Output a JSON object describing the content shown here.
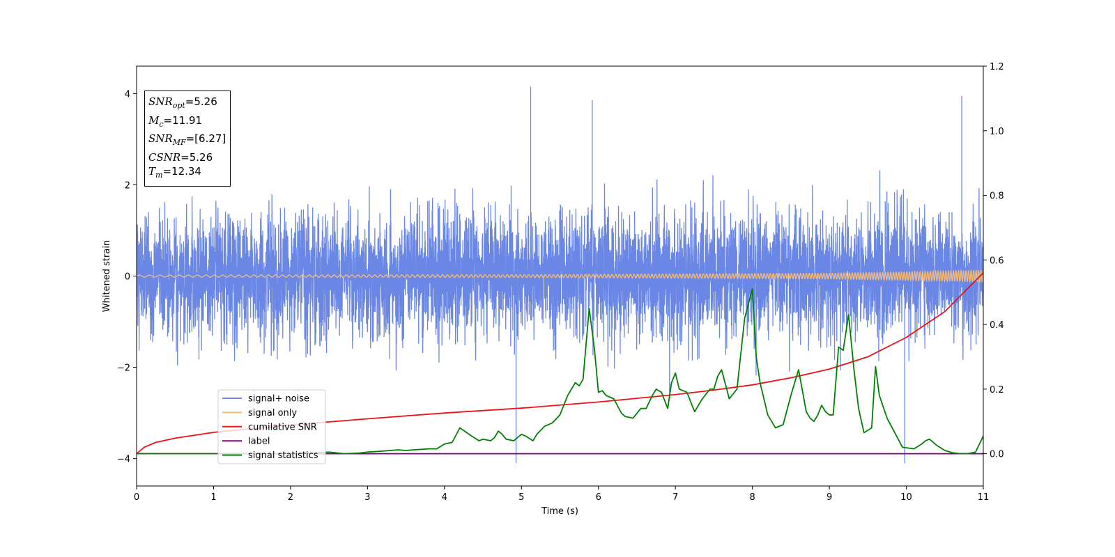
{
  "chart_data": {
    "type": "line",
    "xlabel": "Time (s)",
    "ylabel": "Whitened strain",
    "xlim": [
      0,
      11
    ],
    "ylim": [
      -4.6,
      4.6
    ],
    "y2lim": [
      -0.1,
      1.2
    ],
    "x_ticks": [
      "0",
      "1",
      "2",
      "3",
      "4",
      "5",
      "6",
      "7",
      "8",
      "9",
      "10",
      "11"
    ],
    "y_ticks": [
      "−4",
      "−2",
      "0",
      "2",
      "4"
    ],
    "y2_ticks": [
      "0.0",
      "0.2",
      "0.4",
      "0.6",
      "0.8",
      "1.0",
      "1.2"
    ],
    "legend_position": "lower-left",
    "series": [
      {
        "name": "signal+ noise",
        "axis": "left",
        "color": "#6b87e6",
        "description_values": "dense gaussian-like noise, amplitude mostly within ±2.6, peaks near ±4.2",
        "noise_std": 1.0,
        "peaks": [
          {
            "x": 5.12,
            "y": 4.15
          },
          {
            "x": 10.72,
            "y": 3.95
          },
          {
            "x": 5.92,
            "y": 3.85
          },
          {
            "x": 4.93,
            "y": -4.1
          },
          {
            "x": 9.98,
            "y": -4.1
          }
        ]
      },
      {
        "name": "signal only",
        "axis": "left",
        "color": "#f5b971",
        "envelope": [
          {
            "x": 0,
            "a": 0.02
          },
          {
            "x": 5,
            "a": 0.03
          },
          {
            "x": 9,
            "a": 0.06
          },
          {
            "x": 10,
            "a": 0.09
          },
          {
            "x": 11,
            "a": 0.13
          }
        ]
      },
      {
        "name": "cumilative SNR",
        "axis": "right",
        "color": "#ee1111",
        "x": [
          0,
          0.1,
          0.25,
          0.5,
          1,
          2,
          3,
          4,
          5,
          6,
          7,
          7.5,
          8,
          8.5,
          9,
          9.5,
          10,
          10.5,
          11
        ],
        "values": [
          0.0,
          0.02,
          0.035,
          0.048,
          0.066,
          0.089,
          0.108,
          0.126,
          0.141,
          0.16,
          0.183,
          0.197,
          0.213,
          0.235,
          0.262,
          0.3,
          0.36,
          0.44,
          0.56
        ]
      },
      {
        "name": "label",
        "axis": "right",
        "color": "#800080",
        "x": [
          0,
          11
        ],
        "values": [
          0.0,
          0.0
        ]
      },
      {
        "name": "signal statistics",
        "axis": "right",
        "color": "#008000",
        "x": [
          0,
          1,
          2,
          2.5,
          2.7,
          2.9,
          3.0,
          3.2,
          3.4,
          3.5,
          3.6,
          3.8,
          3.9,
          4.0,
          4.1,
          4.2,
          4.26,
          4.35,
          4.45,
          4.5,
          4.6,
          4.65,
          4.7,
          4.75,
          4.8,
          4.9,
          5.0,
          5.05,
          5.15,
          5.2,
          5.3,
          5.4,
          5.5,
          5.6,
          5.7,
          5.75,
          5.8,
          5.88,
          5.95,
          6.0,
          6.05,
          6.1,
          6.2,
          6.3,
          6.35,
          6.45,
          6.55,
          6.62,
          6.7,
          6.75,
          6.82,
          6.9,
          6.95,
          7.0,
          7.05,
          7.15,
          7.2,
          7.25,
          7.35,
          7.45,
          7.5,
          7.55,
          7.6,
          7.7,
          7.8,
          7.9,
          8.0,
          8.05,
          8.1,
          8.2,
          8.3,
          8.4,
          8.5,
          8.6,
          8.7,
          8.75,
          8.8,
          8.85,
          8.9,
          8.95,
          9.0,
          9.05,
          9.12,
          9.18,
          9.25,
          9.32,
          9.38,
          9.45,
          9.55,
          9.6,
          9.65,
          9.75,
          9.85,
          9.95,
          10.1,
          10.2,
          10.25,
          10.3,
          10.4,
          10.5,
          10.6,
          10.7,
          10.8,
          10.9,
          11.0
        ],
        "values": [
          0.0,
          0.0,
          0.0,
          0.005,
          0.0,
          0.002,
          0.005,
          0.008,
          0.012,
          0.01,
          0.012,
          0.015,
          0.015,
          0.03,
          0.035,
          0.08,
          0.07,
          0.055,
          0.04,
          0.045,
          0.04,
          0.05,
          0.07,
          0.06,
          0.045,
          0.04,
          0.06,
          0.055,
          0.04,
          0.06,
          0.085,
          0.095,
          0.12,
          0.18,
          0.22,
          0.21,
          0.23,
          0.45,
          0.32,
          0.19,
          0.195,
          0.18,
          0.17,
          0.125,
          0.115,
          0.11,
          0.14,
          0.14,
          0.18,
          0.2,
          0.19,
          0.14,
          0.22,
          0.25,
          0.2,
          0.19,
          0.16,
          0.13,
          0.17,
          0.2,
          0.2,
          0.24,
          0.26,
          0.17,
          0.2,
          0.42,
          0.51,
          0.3,
          0.22,
          0.12,
          0.08,
          0.09,
          0.18,
          0.26,
          0.13,
          0.11,
          0.1,
          0.12,
          0.15,
          0.13,
          0.12,
          0.12,
          0.33,
          0.32,
          0.43,
          0.26,
          0.14,
          0.065,
          0.08,
          0.27,
          0.18,
          0.11,
          0.065,
          0.02,
          0.015,
          0.03,
          0.04,
          0.045,
          0.025,
          0.01,
          0.003,
          0.0,
          0.0,
          0.005,
          0.055
        ]
      }
    ],
    "annotations": [
      {
        "label": "SNR",
        "sub": "opt",
        "value": "=5.26"
      },
      {
        "label": "M",
        "sub": "c",
        "value": "=11.91"
      },
      {
        "label": "SNR",
        "sub": "MF",
        "value": "=[6.27]"
      },
      {
        "label": "CSNR",
        "sub": "",
        "value": "=5.26"
      },
      {
        "label": "T",
        "sub": "m",
        "value": "=12.34"
      }
    ]
  }
}
